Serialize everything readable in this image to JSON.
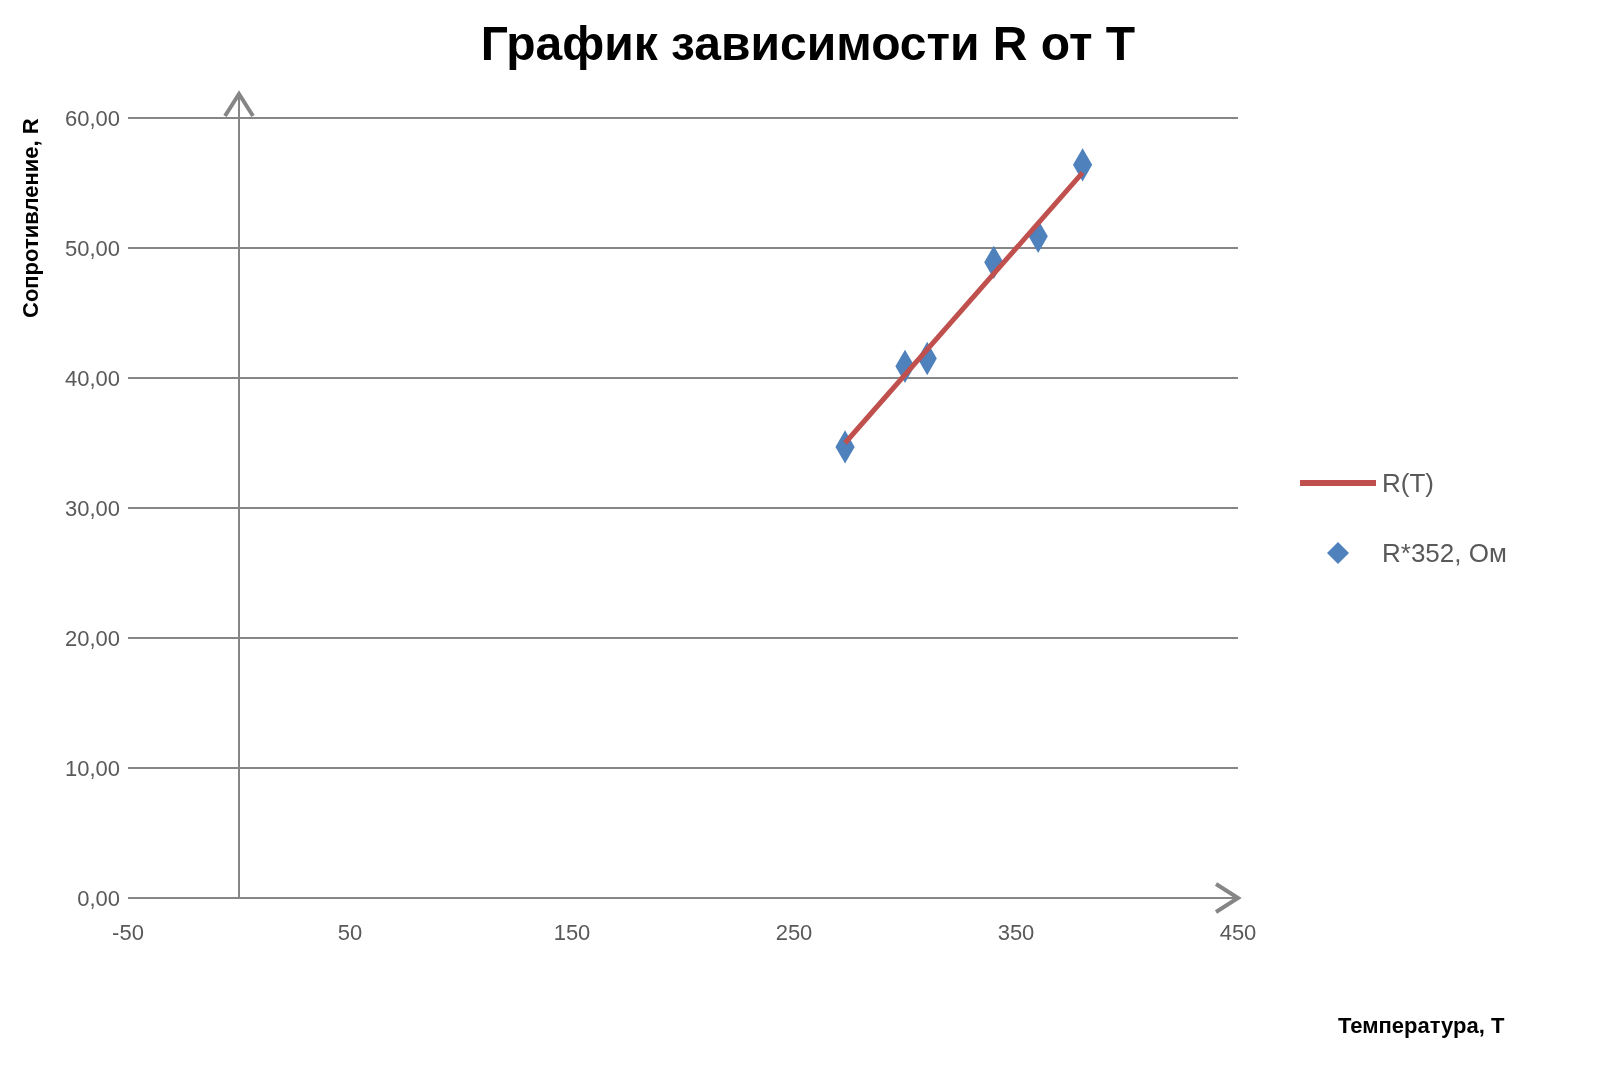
{
  "chart_data": {
    "type": "scatter",
    "title": "График зависимости R от T",
    "xlabel": "Температура, T",
    "ylabel": "Сопротивление, R",
    "xlim": [
      -50,
      450
    ],
    "xticks": [
      -50,
      50,
      150,
      250,
      350,
      450
    ],
    "ylim": [
      0,
      60
    ],
    "yticks": [
      {
        "value": 0,
        "label": "0,00"
      },
      {
        "value": 10,
        "label": "10,00"
      },
      {
        "value": 20,
        "label": "20,00"
      },
      {
        "value": 30,
        "label": "30,00"
      },
      {
        "value": 40,
        "label": "40,00"
      },
      {
        "value": 50,
        "label": "50,00"
      },
      {
        "value": 60,
        "label": "60,00"
      }
    ],
    "grid": "y",
    "legend": "right",
    "series": [
      {
        "name": "R(T)",
        "type": "line",
        "color": "#c0504d",
        "marker": "none",
        "line_style": "solid",
        "x": [
          273,
          380
        ],
        "values": [
          35.0,
          55.8
        ]
      },
      {
        "name": "R*352, Ом",
        "color": "#4f81bd",
        "marker": "diamond",
        "x": [
          273,
          300,
          310,
          340,
          360,
          380
        ],
        "values": [
          34.7,
          40.9,
          41.5,
          48.9,
          50.9,
          56.4
        ]
      }
    ]
  }
}
